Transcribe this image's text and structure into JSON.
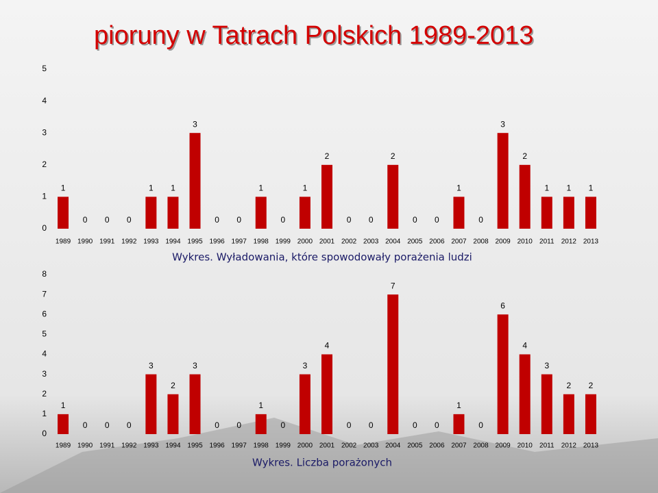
{
  "title": "pioruny w Tatrach Polskich 1989-2013",
  "chart_data": [
    {
      "type": "bar",
      "title": "Wykres. Wyładowania, które spowodowały porażenia ludzi",
      "categories": [
        "1989",
        "1990",
        "1991",
        "1992",
        "1993",
        "1994",
        "1995",
        "1996",
        "1997",
        "1998",
        "1999",
        "2000",
        "2001",
        "2002",
        "2003",
        "2004",
        "2005",
        "2006",
        "2007",
        "2008",
        "2009",
        "2010",
        "2011",
        "2012",
        "2013"
      ],
      "values": [
        1,
        0,
        0,
        0,
        1,
        1,
        3,
        0,
        0,
        1,
        0,
        1,
        2,
        0,
        0,
        2,
        0,
        0,
        1,
        0,
        3,
        2,
        1,
        1,
        1
      ],
      "color": "#c00000",
      "ylim": [
        0,
        5
      ],
      "yticks": [
        0,
        1,
        2,
        3,
        4,
        5
      ],
      "grid": false
    },
    {
      "type": "bar",
      "title": "Wykres. Liczba porażonych",
      "categories": [
        "1989",
        "1990",
        "1991",
        "1992",
        "1993",
        "1994",
        "1995",
        "1996",
        "1997",
        "1998",
        "1999",
        "2000",
        "2001",
        "2002",
        "2003",
        "2004",
        "2005",
        "2006",
        "2007",
        "2008",
        "2009",
        "2010",
        "2011",
        "2012",
        "2013"
      ],
      "values": [
        1,
        0,
        0,
        0,
        3,
        2,
        3,
        0,
        0,
        1,
        0,
        3,
        4,
        0,
        0,
        7,
        0,
        0,
        1,
        0,
        6,
        4,
        3,
        2,
        2
      ],
      "color": "#c00000",
      "ylim": [
        0,
        8
      ],
      "yticks": [
        0,
        1,
        2,
        3,
        4,
        5,
        6,
        7,
        8
      ],
      "grid": false
    }
  ]
}
